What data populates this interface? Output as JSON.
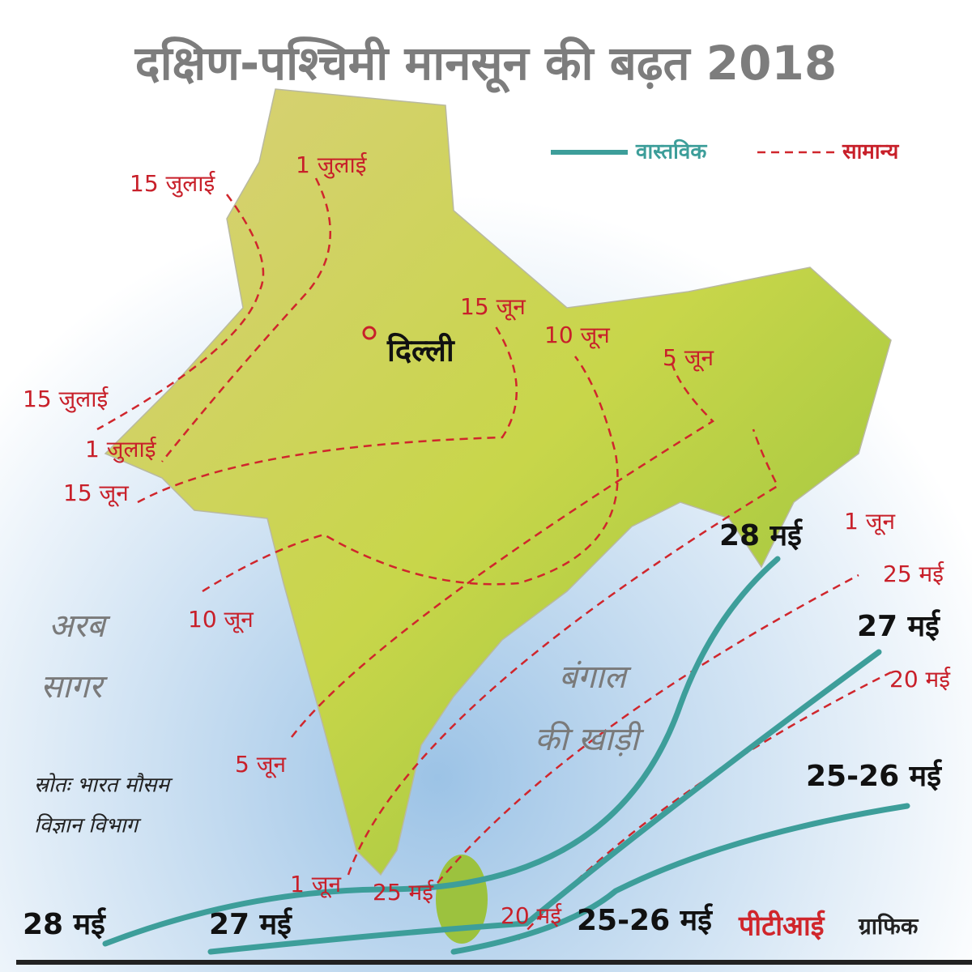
{
  "title": "दक्षिण-पश्चिमी मानसून की बढ़त 2018",
  "legend": {
    "actual": "वास्तविक",
    "normal": "सामान्य"
  },
  "normal_labels": [
    "15 जुलाई",
    "1 जुलाई",
    "15 जून",
    "10 जून",
    "5 जून",
    "1 जून",
    "25 मई",
    "20 मई",
    "15 जुलाई",
    "1 जुलाई",
    "15 जून",
    "10 जून",
    "5 जून",
    "1 जून",
    "25 मई",
    "20 मई"
  ],
  "actual_labels": [
    "28 मई",
    "27 मई",
    "25-26 मई",
    "28 मई",
    "27 मई",
    "25-26 मई"
  ],
  "places": {
    "delhi": "दिल्ली",
    "arabian_sea": [
      "अरब",
      "सागर"
    ],
    "bay_of_bengal": [
      "बंगाल",
      "की खाड़ी"
    ]
  },
  "source": [
    "स्रोतः भारत मौसम",
    "विज्ञान विभाग"
  ],
  "credit": {
    "agency": "पीटीआई",
    "label": "ग्राफिक"
  }
}
